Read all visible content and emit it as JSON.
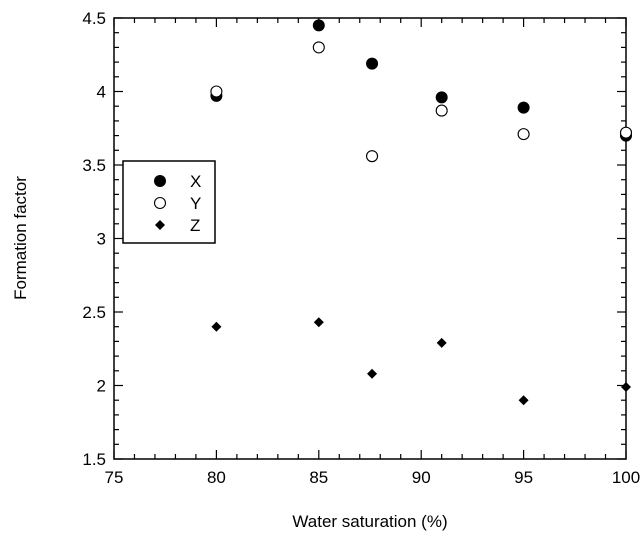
{
  "chart_data": {
    "type": "scatter",
    "xlabel": "Water saturation (%)",
    "ylabel": "Formation factor",
    "xlim": [
      75,
      100
    ],
    "ylim": [
      1.5,
      4.5
    ],
    "xticks": [
      75,
      80,
      85,
      90,
      95,
      100
    ],
    "yticks": [
      1.5,
      2,
      2.5,
      3,
      3.5,
      4,
      4.5
    ],
    "xtick_labels": [
      "75",
      "80",
      "85",
      "90",
      "95",
      "100"
    ],
    "ytick_labels": [
      "1.5",
      "2",
      "2.5",
      "3",
      "3.5",
      "4",
      "4.5"
    ],
    "grid": false,
    "legend_position": "left",
    "series": [
      {
        "name": "X",
        "marker": "filled-circle",
        "x": [
          80,
          85,
          87.6,
          91,
          95,
          100
        ],
        "y": [
          3.97,
          4.45,
          4.19,
          3.96,
          3.89,
          3.7
        ]
      },
      {
        "name": "Y",
        "marker": "open-circle",
        "x": [
          80,
          85,
          87.6,
          91,
          95,
          100
        ],
        "y": [
          4.0,
          4.3,
          3.56,
          3.87,
          3.71,
          3.72
        ]
      },
      {
        "name": "Z",
        "marker": "filled-diamond",
        "x": [
          80,
          85,
          87.6,
          91,
          95,
          100
        ],
        "y": [
          2.4,
          2.43,
          2.08,
          2.29,
          1.9,
          1.99
        ]
      }
    ]
  }
}
